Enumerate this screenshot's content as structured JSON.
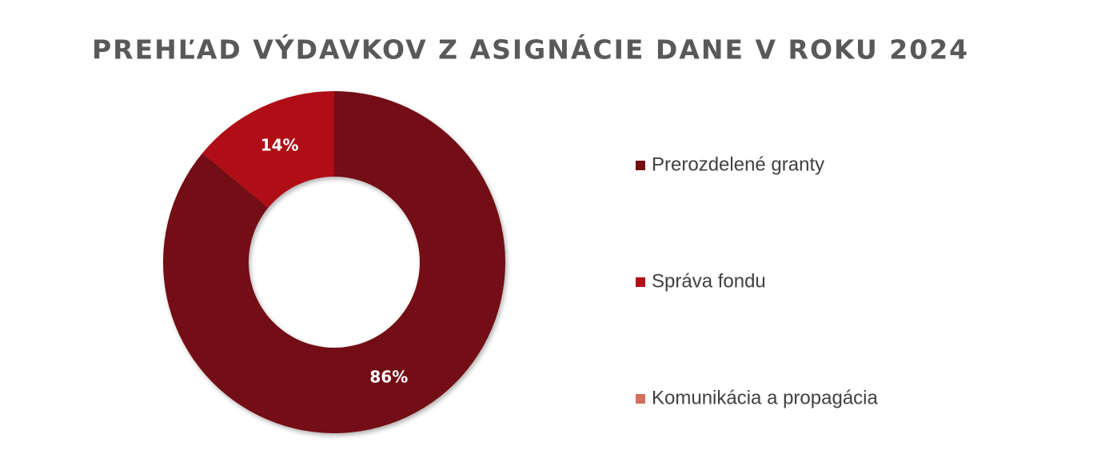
{
  "chart_data": {
    "type": "donut",
    "title": "PREHĽAD VÝDAVKOV Z ASIGNÁCIE DANE V ROKU 2024",
    "categories": [
      "Prerozdelené granty",
      "Správa fondu",
      "Komunikácia a propagácia"
    ],
    "values": [
      86,
      14,
      0
    ],
    "value_labels": [
      "86%",
      "14%",
      null
    ],
    "colors": [
      "#731012",
      "#b01018",
      "#d4705e"
    ],
    "legend": "right"
  }
}
